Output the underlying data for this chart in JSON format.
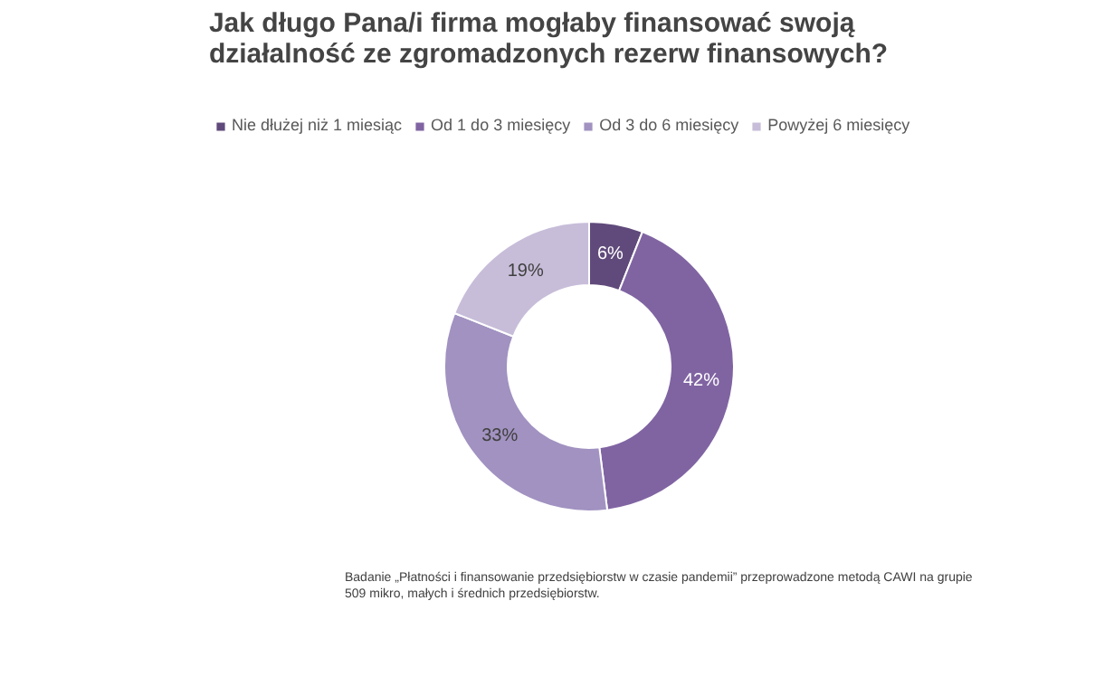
{
  "chart_data": {
    "type": "donut",
    "title": "Jak długo Pana/i firma mogłaby finansować swoją działalność ze zgromadzonych rezerw finansowych?",
    "categories": [
      "Nie dłużej niż 1 miesiąc",
      "Od 1 do 3 miesięcy",
      "Od 3 do 6 miesięcy",
      "Powyżej 6 miesięcy"
    ],
    "values": [
      6,
      42,
      33,
      19
    ],
    "value_labels": [
      "6%",
      "42%",
      "33%",
      "19%"
    ],
    "colors": [
      "#604a7b",
      "#8064a2",
      "#a192c1",
      "#c7bdd9"
    ],
    "legend": "top",
    "annotations": [
      "Badanie „Płatności i finansowanie przedsiębiorstw w czasie pandemii” przeprowadzone metodą CAWI na grupie 509 mikro, małych i średnich przedsiębiorstw."
    ]
  }
}
